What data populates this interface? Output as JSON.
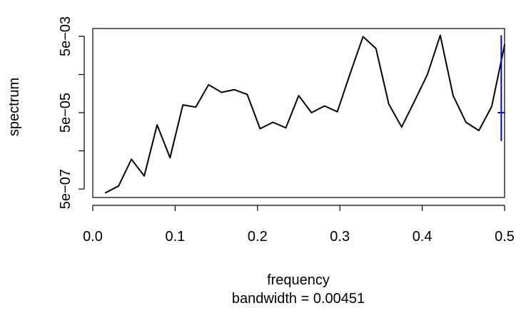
{
  "chart_data": {
    "type": "line",
    "xlabel": "frequency",
    "subtitle": "bandwidth = 0.00451",
    "ylabel": "spectrum",
    "xlim": [
      0,
      0.5
    ],
    "ylim": [
      3e-07,
      0.008
    ],
    "y_scale": "log",
    "x_ticks": [
      "0.0",
      "0.1",
      "0.2",
      "0.3",
      "0.4",
      "0.5"
    ],
    "y_ticks": [
      {
        "value": 5e-07,
        "label": "5e−07"
      },
      {
        "value": 5e-05,
        "label": "5e−05"
      },
      {
        "value": 0.005,
        "label": "5e−03"
      }
    ],
    "y_minor_ticks": [
      5e-06,
      0.0005
    ],
    "series": [
      {
        "color": "#000000",
        "x": [
          0.0156,
          0.0313,
          0.0469,
          0.0625,
          0.0781,
          0.0938,
          0.1094,
          0.125,
          0.1406,
          0.1563,
          0.1719,
          0.1875,
          0.2031,
          0.2188,
          0.2344,
          0.25,
          0.2656,
          0.2813,
          0.2969,
          0.3125,
          0.3281,
          0.3438,
          0.3594,
          0.375,
          0.3906,
          0.4063,
          0.4219,
          0.4375,
          0.4531,
          0.4688,
          0.4844,
          0.5
        ],
        "y": [
          4e-07,
          6e-07,
          3e-06,
          1.1e-06,
          2.4e-05,
          3.3e-06,
          8e-05,
          7e-05,
          0.00027,
          0.00017,
          0.0002,
          0.00015,
          1.9e-05,
          2.8e-05,
          2e-05,
          0.00014,
          5e-05,
          7.5e-05,
          5.3e-05,
          0.00053,
          0.0049,
          0.0024,
          8.4e-05,
          2.1e-05,
          0.0001,
          0.0005,
          0.0053,
          0.00014,
          2.8e-05,
          1.7e-05,
          7.3e-05,
          0.003
        ]
      }
    ],
    "bandwidth_marker": {
      "color": "#0000cc",
      "x": 0.496,
      "y_low": 9e-06,
      "y_high": 0.0053,
      "y_center": 5e-05
    }
  }
}
